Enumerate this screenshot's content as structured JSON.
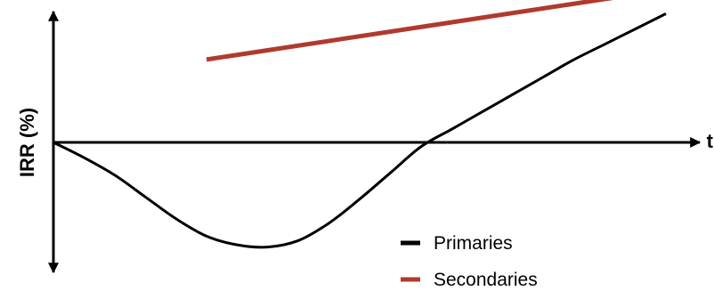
{
  "chart_data": {
    "type": "line",
    "title": "",
    "xlabel": "t",
    "ylabel": "IRR (%)",
    "xlim": [
      0,
      10
    ],
    "ylim": [
      -6,
      6
    ],
    "grid": false,
    "legend_position": "bottom-right",
    "series": [
      {
        "name": "Primaries",
        "color": "#000000",
        "x": [
          0,
          0.5,
          1,
          1.5,
          2,
          2.5,
          3,
          3.5,
          4,
          4.5,
          5,
          5.5,
          6,
          6.5,
          7,
          7.5,
          8,
          8.5,
          9,
          9.5,
          10
        ],
        "y": [
          0,
          -0.7,
          -1.5,
          -2.5,
          -3.5,
          -4.3,
          -4.7,
          -4.8,
          -4.5,
          -3.7,
          -2.6,
          -1.4,
          -0.2,
          0.6,
          1.4,
          2.2,
          3.0,
          3.8,
          4.5,
          5.2,
          5.9
        ]
      },
      {
        "name": "Secondaries",
        "color": "#b03a2e",
        "x": [
          2.5,
          10
        ],
        "y": [
          3.8,
          7.0
        ]
      }
    ]
  }
}
